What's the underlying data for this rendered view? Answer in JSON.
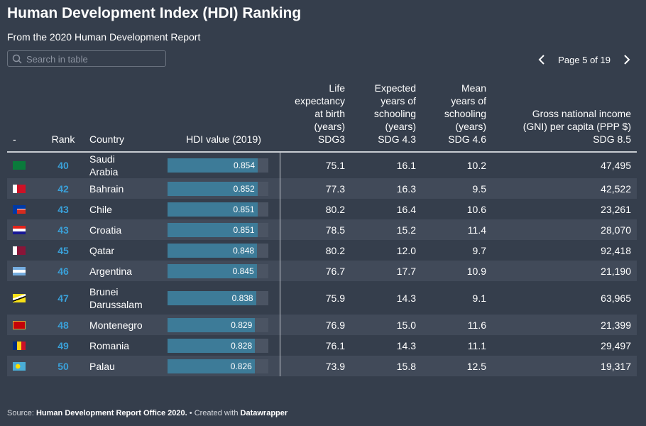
{
  "header": {
    "title": "Human Development Index (HDI) Ranking",
    "subtitle": "From the 2020 Human Development Report"
  },
  "search_placeholder": "Search in table",
  "pagination": "Page 5 of 19",
  "table": {
    "columns": [
      "-",
      "Rank",
      "Country",
      "HDI value (2019)",
      "Life expectancy at birth (years) SDG3",
      "Expected years of schooling (years) SDG 4.3",
      "Mean years of schooling (years) SDG 4.6",
      "Gross national income (GNI) per capita (PPP $) SDG 8.5"
    ],
    "rows": [
      [
        40,
        "Saudi Arabia",
        0.854,
        "75.1",
        "16.1",
        "10.2",
        "47,495"
      ],
      [
        42,
        "Bahrain",
        0.852,
        "77.3",
        "16.3",
        "9.5",
        "42,522"
      ],
      [
        43,
        "Chile",
        0.851,
        "80.2",
        "16.4",
        "10.6",
        "23,261"
      ],
      [
        43,
        "Croatia",
        0.851,
        "78.5",
        "15.2",
        "11.4",
        "28,070"
      ],
      [
        45,
        "Qatar",
        0.848,
        "80.2",
        "12.0",
        "9.7",
        "92,418"
      ],
      [
        46,
        "Argentina",
        0.845,
        "76.7",
        "17.7",
        "10.9",
        "21,190"
      ],
      [
        47,
        "Brunei Darussalam",
        0.838,
        "75.9",
        "14.3",
        "9.1",
        "63,965"
      ],
      [
        48,
        "Montenegro",
        0.829,
        "76.9",
        "15.0",
        "11.6",
        "21,399"
      ],
      [
        49,
        "Romania",
        0.828,
        "76.1",
        "14.3",
        "11.1",
        "29,497"
      ],
      [
        50,
        "Palau",
        0.826,
        "73.9",
        "15.8",
        "12.5",
        "19,317"
      ]
    ]
  },
  "footer": {
    "source_label": "Source:",
    "source": "Human Development Report Office 2020.",
    "created_label": "• Created with",
    "tool": "Datawrapper"
  }
}
